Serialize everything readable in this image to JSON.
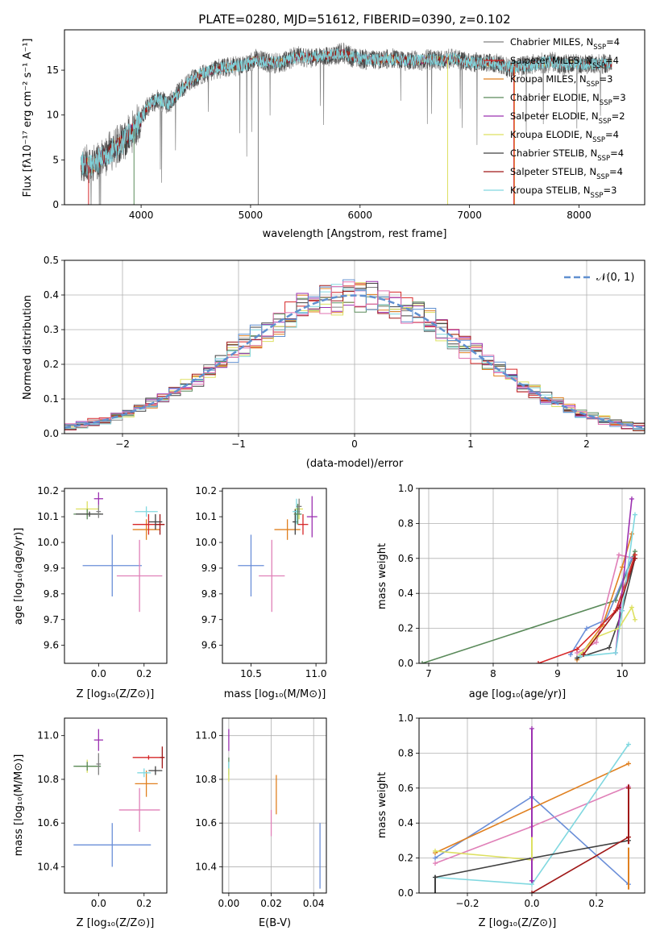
{
  "chart_data": [
    {
      "id": "spectrum",
      "type": "line",
      "title": "PLATE=0280, MJD=51612, FIBERID=0390, z=0.102",
      "xlabel": "wavelength [Angstrom, rest frame]",
      "ylabel": "Flux [fλ10⁻¹⁷ erg cm⁻² s⁻¹ A⁻¹]",
      "xlim": [
        3300,
        8600
      ],
      "ylim": [
        0,
        19.5
      ],
      "xticks": [
        4000,
        5000,
        6000,
        7000,
        8000
      ],
      "yticks": [
        0,
        5,
        10,
        15
      ],
      "grid": false,
      "legend_position": "right",
      "continuum": {
        "x": [
          3450,
          3550,
          3650,
          3750,
          3850,
          3950,
          4050,
          4150,
          4250,
          4350,
          4450,
          4550,
          4650,
          4750,
          4850,
          4950,
          5050,
          5150,
          5250,
          5350,
          5450,
          5550,
          5650,
          5750,
          5850,
          5950,
          6050,
          6150,
          6250,
          6350,
          6450,
          6550,
          6650,
          6750,
          6850,
          6950,
          7050,
          7150,
          7250,
          7350,
          7450,
          7550,
          7650,
          7750,
          7850,
          7950,
          8050,
          8150,
          8250,
          8300
        ],
        "y": [
          4.6,
          4.3,
          5.3,
          6.2,
          7.2,
          8.6,
          10.8,
          11.8,
          11.2,
          12.6,
          13.8,
          14.6,
          15.0,
          15.3,
          15.4,
          15.6,
          16.2,
          15.9,
          15.8,
          16.2,
          16.6,
          16.4,
          16.5,
          16.7,
          16.9,
          16.4,
          16.2,
          16.1,
          16.3,
          16.2,
          16.0,
          16.1,
          16.2,
          16.1,
          16.3,
          16.0,
          15.8,
          15.9,
          15.7,
          15.3,
          15.4,
          15.5,
          15.8,
          15.9,
          15.6,
          15.8,
          15.6,
          15.7,
          15.7,
          15.8
        ]
      },
      "series": [
        {
          "name": "Chabrier MILES, N_SSP=4",
          "color": "#808080"
        },
        {
          "name": "Salpeter MILES, N_SSP=4",
          "color": "#d62728"
        },
        {
          "name": "Kroupa MILES, N_SSP=3",
          "color": "#e08020"
        },
        {
          "name": "Chabrier ELODIE, N_SSP=3",
          "color": "#5a8a5a"
        },
        {
          "name": "Salpeter ELODIE, N_SSP=2",
          "color": "#9b30b0"
        },
        {
          "name": "Kroupa ELODIE, N_SSP=4",
          "color": "#dde060"
        },
        {
          "name": "Chabrier STELIB, N_SSP=4",
          "color": "#404040"
        },
        {
          "name": "Salpeter STELIB, N_SSP=4",
          "color": "#a01818"
        },
        {
          "name": "Kroupa STELIB, N_SSP=3",
          "color": "#80d8e0"
        }
      ],
      "legend": [
        {
          "main": "Chabrier MILES, N",
          "sub": "SSP",
          "tail": "=4"
        },
        {
          "main": "Salpeter MILES, N",
          "sub": "SSP",
          "tail": "=4"
        },
        {
          "main": "Kroupa MILES, N",
          "sub": "SSP",
          "tail": "=3"
        },
        {
          "main": "Chabrier ELODIE, N",
          "sub": "SSP",
          "tail": "=3"
        },
        {
          "main": "Salpeter ELODIE, N",
          "sub": "SSP",
          "tail": "=2"
        },
        {
          "main": "Kroupa ELODIE, N",
          "sub": "SSP",
          "tail": "=4"
        },
        {
          "main": "Chabrier STELIB, N",
          "sub": "SSP",
          "tail": "=4"
        },
        {
          "main": "Salpeter STELIB, N",
          "sub": "SSP",
          "tail": "=4"
        },
        {
          "main": "Kroupa STELIB, N",
          "sub": "SSP",
          "tail": "=3"
        }
      ]
    },
    {
      "id": "residuals",
      "type": "line",
      "xlabel": "(data-model)/error",
      "ylabel": "Normed distribution",
      "xlim": [
        -2.5,
        2.5
      ],
      "ylim": [
        0,
        0.5
      ],
      "xticks": [
        -2,
        -1,
        0,
        1,
        2
      ],
      "xtick_labels": [
        "−2",
        "−1",
        "0",
        "1",
        "2"
      ],
      "yticks": [
        0.0,
        0.1,
        0.2,
        0.3,
        0.4,
        0.5
      ],
      "ytick_labels": [
        "0.0",
        "0.1",
        "0.2",
        "0.3",
        "0.4",
        "0.5"
      ],
      "grid": true,
      "legend_position": "top-right",
      "reference_curve": {
        "name": "𝒩(0, 1)",
        "color": "#6090d0",
        "mean": 0,
        "sigma": 1
      },
      "bin_width": 0.1,
      "histogram_colors": [
        "#808080",
        "#d62728",
        "#e08020",
        "#5a8a5a",
        "#9b30b0",
        "#dde060",
        "#404040",
        "#a01818",
        "#80d8e0",
        "#6090d0",
        "#e070b0"
      ]
    },
    {
      "id": "age-vs-Z",
      "type": "scatter",
      "xlabel": "Z [log₁₀(Z/Z⊙)]",
      "ylabel": "age  [log₁₀(age/yr)]",
      "xlim": [
        -0.15,
        0.3
      ],
      "ylim": [
        9.53,
        10.21
      ],
      "xticks": [
        0.0,
        0.2
      ],
      "xtick_labels": [
        "0.0",
        "0.2"
      ],
      "yticks": [
        9.6,
        9.7,
        9.8,
        9.9,
        10.0,
        10.1,
        10.2
      ],
      "ytick_labels": [
        "9.6",
        "9.7",
        "9.8",
        "9.9",
        "10.0",
        "10.1",
        "10.2"
      ],
      "grid": false,
      "points": [
        {
          "x": 0.06,
          "y": 9.91,
          "xerr": 0.13,
          "yerr": 0.12,
          "color": "#6a8ed8"
        },
        {
          "x": 0.18,
          "y": 9.87,
          "xerr": 0.1,
          "yerr": 0.14,
          "color": "#e080b8"
        },
        {
          "x": 0.21,
          "y": 10.05,
          "xerr": 0.06,
          "yerr": 0.04,
          "color": "#e08020"
        },
        {
          "x": 0.22,
          "y": 10.07,
          "xerr": 0.07,
          "yerr": 0.04,
          "color": "#d62728"
        },
        {
          "x": 0.27,
          "y": 10.07,
          "xerr": 0.02,
          "yerr": 0.04,
          "color": "#a01818"
        },
        {
          "x": 0.25,
          "y": 10.08,
          "xerr": 0.03,
          "yerr": 0.03,
          "color": "#404040"
        },
        {
          "x": 0.21,
          "y": 10.12,
          "xerr": 0.05,
          "yerr": 0.02,
          "color": "#80d8e0"
        },
        {
          "x": -0.05,
          "y": 10.13,
          "xerr": 0.05,
          "yerr": 0.03,
          "color": "#dde060"
        },
        {
          "x": -0.05,
          "y": 10.11,
          "xerr": 0.06,
          "yerr": 0.02,
          "color": "#5a8a5a"
        },
        {
          "x": -0.04,
          "y": 10.11,
          "xerr": 0.06,
          "yerr": 0.01,
          "color": "#404040"
        },
        {
          "x": 0.0,
          "y": 10.17,
          "xerr": 0.02,
          "yerr": 0.025,
          "color": "#9b30b0"
        },
        {
          "x": 0.0,
          "y": 10.12,
          "xerr": 0.01,
          "yerr": 0.025,
          "color": "#808080"
        }
      ]
    },
    {
      "id": "age-vs-mass",
      "type": "scatter",
      "xlabel": "mass [log₁₀(M/M⊙)]",
      "ylabel": "",
      "xlim": [
        10.28,
        11.08
      ],
      "ylim": [
        9.53,
        10.21
      ],
      "xticks": [
        10.5,
        11.0
      ],
      "xtick_labels": [
        "10.5",
        "11.0"
      ],
      "yticks": [
        9.6,
        9.7,
        9.8,
        9.9,
        10.0,
        10.1,
        10.2
      ],
      "ytick_labels": [
        "9.6",
        "9.7",
        "9.8",
        "9.9",
        "10.0",
        "10.1",
        "10.2"
      ],
      "grid": false,
      "points": [
        {
          "x": 10.5,
          "y": 9.91,
          "xerr": 0.1,
          "yerr": 0.12,
          "color": "#6a8ed8"
        },
        {
          "x": 10.66,
          "y": 9.87,
          "xerr": 0.1,
          "yerr": 0.14,
          "color": "#e080b8"
        },
        {
          "x": 10.78,
          "y": 10.05,
          "xerr": 0.1,
          "yerr": 0.04,
          "color": "#e08020"
        },
        {
          "x": 10.9,
          "y": 10.07,
          "xerr": 0.04,
          "yerr": 0.04,
          "color": "#d62728"
        },
        {
          "x": 10.84,
          "y": 10.08,
          "xerr": 0.02,
          "yerr": 0.05,
          "color": "#404040"
        },
        {
          "x": 10.85,
          "y": 10.12,
          "xerr": 0.03,
          "yerr": 0.05,
          "color": "#80d8e0"
        },
        {
          "x": 10.87,
          "y": 10.13,
          "xerr": 0.03,
          "yerr": 0.04,
          "color": "#dde060"
        },
        {
          "x": 10.86,
          "y": 10.11,
          "xerr": 0.03,
          "yerr": 0.04,
          "color": "#5a8a5a"
        },
        {
          "x": 10.97,
          "y": 10.1,
          "xerr": 0.04,
          "yerr": 0.08,
          "color": "#9b30b0"
        },
        {
          "x": 10.87,
          "y": 10.14,
          "xerr": 0.02,
          "yerr": 0.03,
          "color": "#808080"
        }
      ]
    },
    {
      "id": "weight-vs-age",
      "type": "line",
      "xlabel": "age  [log₁₀(age/yr)]",
      "ylabel": "mass weight",
      "xlim": [
        6.85,
        10.35
      ],
      "ylim": [
        0,
        1
      ],
      "xticks": [
        7,
        8,
        9,
        10
      ],
      "xtick_labels": [
        "7",
        "8",
        "9",
        "10"
      ],
      "yticks": [
        0.0,
        0.2,
        0.4,
        0.6,
        0.8,
        1.0
      ],
      "ytick_labels": [
        "0.0",
        "0.2",
        "0.4",
        "0.6",
        "0.8",
        "1.0"
      ],
      "grid": true,
      "series": [
        {
          "color": "#5a8a5a",
          "x": [
            6.9,
            9.9,
            10.2
          ],
          "y": [
            0.0,
            0.36,
            0.64
          ]
        },
        {
          "color": "#6a8ed8",
          "x": [
            9.2,
            9.45,
            9.75,
            10.15
          ],
          "y": [
            0.05,
            0.2,
            0.25,
            0.6
          ]
        },
        {
          "color": "#e080b8",
          "x": [
            9.3,
            9.6,
            9.95,
            10.2
          ],
          "y": [
            0.06,
            0.12,
            0.62,
            0.6
          ]
        },
        {
          "color": "#e08020",
          "x": [
            9.3,
            9.7,
            10.0,
            10.15
          ],
          "y": [
            0.02,
            0.22,
            0.55,
            0.74
          ]
        },
        {
          "color": "#d62728",
          "x": [
            8.7,
            9.3,
            9.9,
            10.2
          ],
          "y": [
            0.0,
            0.08,
            0.3,
            0.62
          ]
        },
        {
          "color": "#404040",
          "x": [
            9.3,
            9.8,
            10.0,
            10.2
          ],
          "y": [
            0.03,
            0.09,
            0.3,
            0.6
          ]
        },
        {
          "color": "#9b30b0",
          "x": [
            9.9,
            10.15
          ],
          "y": [
            0.06,
            0.94
          ]
        },
        {
          "color": "#dde060",
          "x": [
            9.35,
            9.6,
            9.95,
            10.15,
            10.2
          ],
          "y": [
            0.05,
            0.15,
            0.2,
            0.32,
            0.25
          ]
        },
        {
          "color": "#80d8e0",
          "x": [
            9.35,
            9.9,
            10.0,
            10.2
          ],
          "y": [
            0.04,
            0.06,
            0.3,
            0.85
          ]
        },
        {
          "color": "#a01818",
          "x": [
            9.4,
            9.95,
            10.2
          ],
          "y": [
            0.05,
            0.32,
            0.6
          ]
        }
      ]
    },
    {
      "id": "mass-vs-Z",
      "type": "scatter",
      "xlabel": "Z [log₁₀(Z/Z⊙)]",
      "ylabel": "mass [log₁₀(M/M⊙)]",
      "xlim": [
        -0.15,
        0.3
      ],
      "ylim": [
        10.28,
        11.08
      ],
      "xticks": [
        0.0,
        0.2
      ],
      "xtick_labels": [
        "0.0",
        "0.2"
      ],
      "yticks": [
        10.4,
        10.6,
        10.8,
        11.0
      ],
      "ytick_labels": [
        "10.4",
        "10.6",
        "10.8",
        "11.0"
      ],
      "grid": false,
      "points": [
        {
          "x": 0.06,
          "y": 10.5,
          "xerr": 0.17,
          "yerr": 0.1,
          "color": "#6a8ed8"
        },
        {
          "x": 0.18,
          "y": 10.66,
          "xerr": 0.09,
          "yerr": 0.1,
          "color": "#e080b8"
        },
        {
          "x": 0.21,
          "y": 10.78,
          "xerr": 0.05,
          "yerr": 0.06,
          "color": "#e08020"
        },
        {
          "x": 0.22,
          "y": 10.9,
          "xerr": 0.07,
          "yerr": 0.01,
          "color": "#d62728"
        },
        {
          "x": 0.28,
          "y": 10.9,
          "xerr": 0.01,
          "yerr": 0.05,
          "color": "#a01818"
        },
        {
          "x": 0.25,
          "y": 10.84,
          "xerr": 0.03,
          "yerr": 0.02,
          "color": "#404040"
        },
        {
          "x": 0.2,
          "y": 10.83,
          "xerr": 0.03,
          "yerr": 0.02,
          "color": "#80d8e0"
        },
        {
          "x": -0.05,
          "y": 10.86,
          "xerr": 0.05,
          "yerr": 0.03,
          "color": "#dde060"
        },
        {
          "x": -0.05,
          "y": 10.86,
          "xerr": 0.06,
          "yerr": 0.02,
          "color": "#5a8a5a"
        },
        {
          "x": 0.0,
          "y": 10.98,
          "xerr": 0.02,
          "yerr": 0.05,
          "color": "#9b30b0"
        },
        {
          "x": 0.0,
          "y": 10.87,
          "xerr": 0.01,
          "yerr": 0.05,
          "color": "#808080"
        }
      ]
    },
    {
      "id": "mass-vs-ebv",
      "type": "scatter",
      "xlabel": "E(B-V)",
      "ylabel": "",
      "xlim": [
        -0.003,
        0.046
      ],
      "ylim": [
        10.28,
        11.08
      ],
      "xticks": [
        0.0,
        0.02,
        0.04
      ],
      "xtick_labels": [
        "0.00",
        "0.02",
        "0.04"
      ],
      "yticks": [
        10.4,
        10.6,
        10.8,
        11.0
      ],
      "ytick_labels": [
        "10.4",
        "10.6",
        "10.8",
        "11.0"
      ],
      "grid": true,
      "points": [
        {
          "x": 0.043,
          "y": 10.45,
          "xerr": 0,
          "yerr": 0.15,
          "color": "#6a8ed8"
        },
        {
          "x": 0.02,
          "y": 10.6,
          "xerr": 0,
          "yerr": 0.06,
          "color": "#e080b8"
        },
        {
          "x": 0.0224,
          "y": 10.73,
          "xerr": 0,
          "yerr": 0.09,
          "color": "#e08020"
        },
        {
          "x": 0.0,
          "y": 10.98,
          "xerr": 0,
          "yerr": 0.05,
          "color": "#9b30b0"
        },
        {
          "x": 0.0,
          "y": 10.86,
          "xerr": 0,
          "yerr": 0.04,
          "color": "#5a8a5a"
        },
        {
          "x": 0.0,
          "y": 10.84,
          "xerr": 0,
          "yerr": 0.04,
          "color": "#80d8e0"
        },
        {
          "x": 0.0,
          "y": 10.82,
          "xerr": 0,
          "yerr": 0.03,
          "color": "#dde060"
        }
      ]
    },
    {
      "id": "weight-vs-Z",
      "type": "line",
      "xlabel": "Z [log₁₀(Z/Z⊙)]",
      "ylabel": "mass weight",
      "xlim": [
        -0.35,
        0.35
      ],
      "ylim": [
        0,
        1
      ],
      "xticks": [
        -0.2,
        0.0,
        0.2
      ],
      "xtick_labels": [
        "−0.2",
        "0.0",
        "0.2"
      ],
      "yticks": [
        0.0,
        0.2,
        0.4,
        0.6,
        0.8,
        1.0
      ],
      "ytick_labels": [
        "0.0",
        "0.2",
        "0.4",
        "0.6",
        "0.8",
        "1.0"
      ],
      "grid": true,
      "series": [
        {
          "color": "#6a8ed8",
          "x": [
            -0.3,
            0.0,
            0.3
          ],
          "y": [
            0.2,
            0.55,
            0.05
          ]
        },
        {
          "color": "#e08020",
          "x": [
            -0.3,
            0.3
          ],
          "y": [
            0.23,
            0.74
          ]
        },
        {
          "color": "#e080b8",
          "x": [
            -0.3,
            0.0,
            0.3
          ],
          "y": [
            0.17,
            0.38,
            0.61
          ]
        },
        {
          "color": "#dde060",
          "x": [
            -0.3,
            0.0
          ],
          "y": [
            0.24,
            0.19
          ]
        },
        {
          "color": "#80d8e0",
          "x": [
            -0.3,
            0.0,
            0.3
          ],
          "y": [
            0.09,
            0.05,
            0.85
          ]
        },
        {
          "color": "#404040",
          "x": [
            -0.3,
            0.0,
            0.3
          ],
          "y": [
            0.09,
            0.2,
            0.3
          ]
        },
        {
          "color": "#a01818",
          "x": [
            0.0,
            0.3,
            0.3
          ],
          "y": [
            0.0,
            0.32,
            0.6
          ]
        },
        {
          "color": "#9b30b0",
          "x": [
            0.0,
            0.0
          ],
          "y": [
            0.07,
            0.94
          ]
        }
      ],
      "error_bars": [
        {
          "x": -0.3,
          "y": 0.05,
          "yerr": 0.05,
          "color": "#404040"
        },
        {
          "x": 0.0,
          "y": 0.5,
          "yerr": 0.44,
          "color": "#9b30b0"
        },
        {
          "x": 0.0,
          "y": 0.26,
          "yerr": 0.06,
          "color": "#dde060"
        },
        {
          "x": 0.3,
          "y": 0.45,
          "yerr": 0.17,
          "color": "#a01818"
        },
        {
          "x": 0.3,
          "y": 0.14,
          "yerr": 0.12,
          "color": "#e08020"
        }
      ]
    }
  ]
}
